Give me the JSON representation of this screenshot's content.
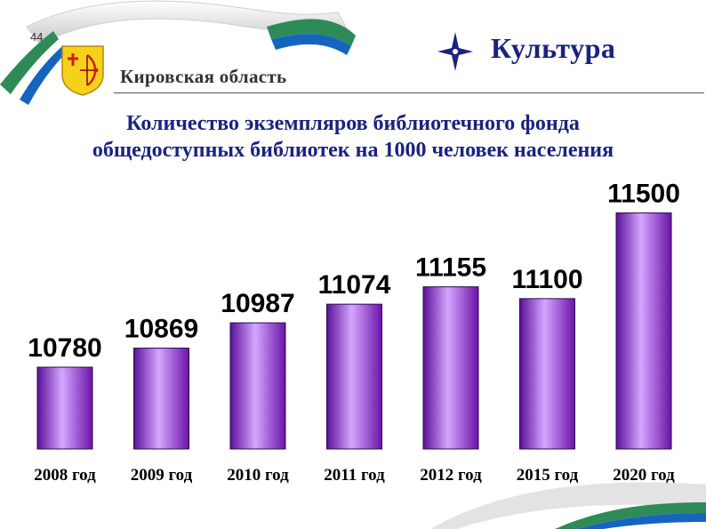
{
  "slide": {
    "page_number": "44",
    "region": "Кировская область",
    "section": "Культура"
  },
  "chart_data": {
    "type": "bar",
    "title_lines": [
      "Количество экземпляров библиотечного фонда",
      "общедоступных библиотек на 1000 человек населения"
    ],
    "title": "Количество экземпляров библиотечного фонда общедоступных библиотек на 1000 человек населения",
    "categories": [
      "2008 год",
      "2009 год",
      "2010 год",
      "2011 год",
      "2012 год",
      "2015 год",
      "2020 год"
    ],
    "values": [
      10780,
      10869,
      10987,
      11074,
      11155,
      11100,
      11500
    ],
    "data_labels": [
      "10780",
      "10869",
      "10987",
      "11074",
      "11155",
      "11100",
      "11500"
    ],
    "xlabel": "",
    "ylabel": "",
    "legend": "none",
    "grid": false,
    "bar_color": "#9b30ff"
  },
  "colors": {
    "title": "#1a237e",
    "region_text": "#333333",
    "ribbon_green": "#2e8b57",
    "ribbon_blue": "#1565c0"
  },
  "icons": {
    "coat_of_arms": "kirov-coat-of-arms-icon",
    "star": "four-point-star-icon"
  }
}
